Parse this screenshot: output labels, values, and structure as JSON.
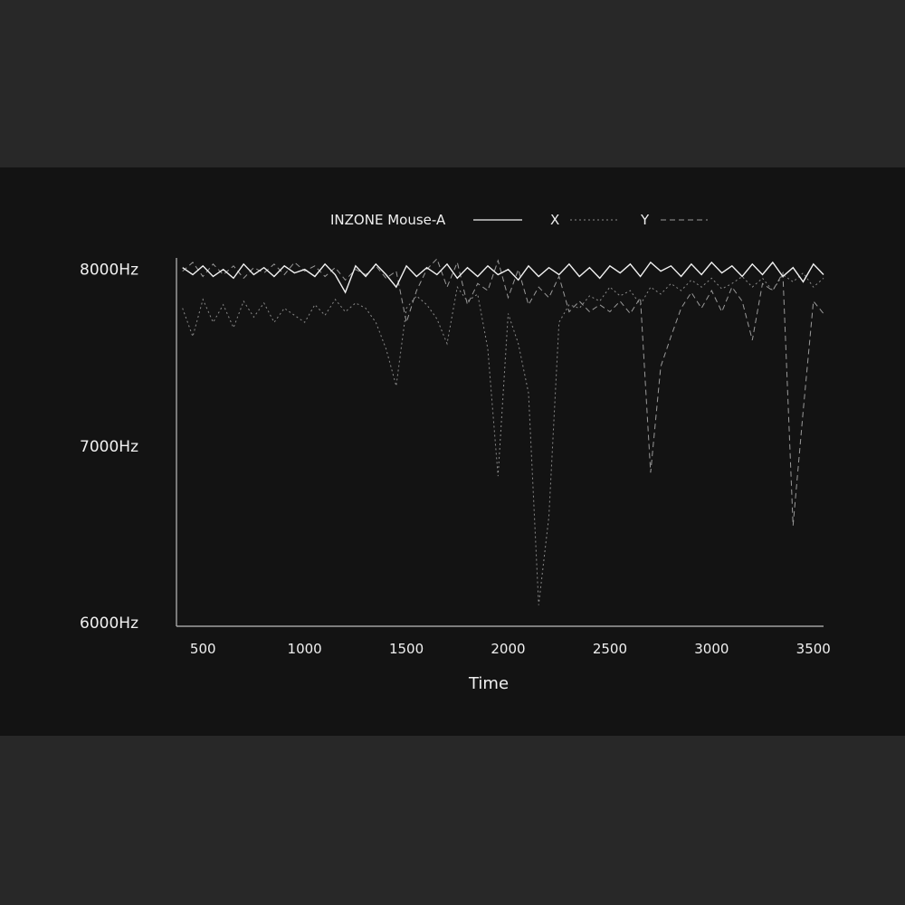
{
  "chart_data": {
    "type": "line",
    "xlabel": "Time",
    "ylabel": "",
    "xlim": [
      370,
      3550
    ],
    "ylim": [
      5980,
      8065
    ],
    "x_ticks": [
      500,
      1000,
      1500,
      2000,
      2500,
      3000,
      3500
    ],
    "x_tick_labels": [
      "500",
      "1000",
      "1500",
      "2000",
      "2500",
      "3000",
      "3500"
    ],
    "y_ticks": [
      6000,
      7000,
      8000
    ],
    "y_tick_labels": [
      "6000Hz",
      "7000Hz",
      "8000Hz"
    ],
    "grid": false,
    "legend_position": "top-center",
    "x": [
      400,
      450,
      500,
      550,
      600,
      650,
      700,
      750,
      800,
      850,
      900,
      950,
      1000,
      1050,
      1100,
      1150,
      1200,
      1250,
      1300,
      1350,
      1400,
      1450,
      1500,
      1550,
      1600,
      1650,
      1700,
      1750,
      1800,
      1850,
      1900,
      1950,
      2000,
      2050,
      2100,
      2150,
      2200,
      2250,
      2300,
      2350,
      2400,
      2450,
      2500,
      2550,
      2600,
      2650,
      2700,
      2750,
      2800,
      2850,
      2900,
      2950,
      3000,
      3050,
      3100,
      3150,
      3200,
      3250,
      3300,
      3350,
      3400,
      3450,
      3500,
      3550
    ],
    "series": [
      {
        "name": "INZONE Mouse-A",
        "style": "solid",
        "color": "#f2f2f2",
        "values": [
          8010,
          7970,
          8020,
          7960,
          8000,
          7950,
          8030,
          7970,
          8010,
          7960,
          8020,
          7980,
          8000,
          7960,
          8030,
          7970,
          7870,
          8020,
          7960,
          8030,
          7970,
          7900,
          8020,
          7960,
          8010,
          7970,
          8030,
          7950,
          8010,
          7960,
          8020,
          7970,
          8000,
          7940,
          8020,
          7960,
          8010,
          7970,
          8030,
          7960,
          8010,
          7950,
          8020,
          7980,
          8030,
          7960,
          8040,
          7990,
          8020,
          7960,
          8030,
          7970,
          8040,
          7980,
          8020,
          7960,
          8030,
          7970,
          8040,
          7960,
          8010,
          7930,
          8030,
          7970
        ]
      },
      {
        "name": "X",
        "style": "dotted",
        "color": "#8a8a8a",
        "values": [
          7780,
          7620,
          7830,
          7700,
          7800,
          7670,
          7820,
          7730,
          7810,
          7700,
          7780,
          7740,
          7700,
          7800,
          7740,
          7830,
          7760,
          7810,
          7780,
          7700,
          7550,
          7340,
          7780,
          7850,
          7800,
          7720,
          7580,
          7900,
          7820,
          7860,
          7550,
          6830,
          7750,
          7580,
          7300,
          6100,
          6600,
          7700,
          7800,
          7780,
          7850,
          7820,
          7900,
          7850,
          7880,
          7800,
          7900,
          7860,
          7920,
          7880,
          7940,
          7900,
          7950,
          7890,
          7920,
          7960,
          7900,
          7950,
          7880,
          7970,
          7930,
          7980,
          7900,
          7950
        ]
      },
      {
        "name": "Y",
        "style": "dashed",
        "color": "#9a9a9a",
        "values": [
          7990,
          8040,
          7960,
          8030,
          7970,
          8020,
          7950,
          8010,
          7980,
          8030,
          7970,
          8040,
          7990,
          8020,
          7960,
          8010,
          7940,
          8000,
          7970,
          8020,
          7950,
          7990,
          7700,
          7880,
          8000,
          8060,
          7900,
          8040,
          7800,
          7920,
          7880,
          8050,
          7840,
          8000,
          7800,
          7900,
          7840,
          7960,
          7760,
          7820,
          7760,
          7800,
          7760,
          7820,
          7750,
          7840,
          6850,
          7450,
          7620,
          7780,
          7870,
          7780,
          7880,
          7760,
          7900,
          7820,
          7600,
          7920,
          7880,
          7980,
          6550,
          7200,
          7820,
          7750
        ]
      }
    ]
  }
}
